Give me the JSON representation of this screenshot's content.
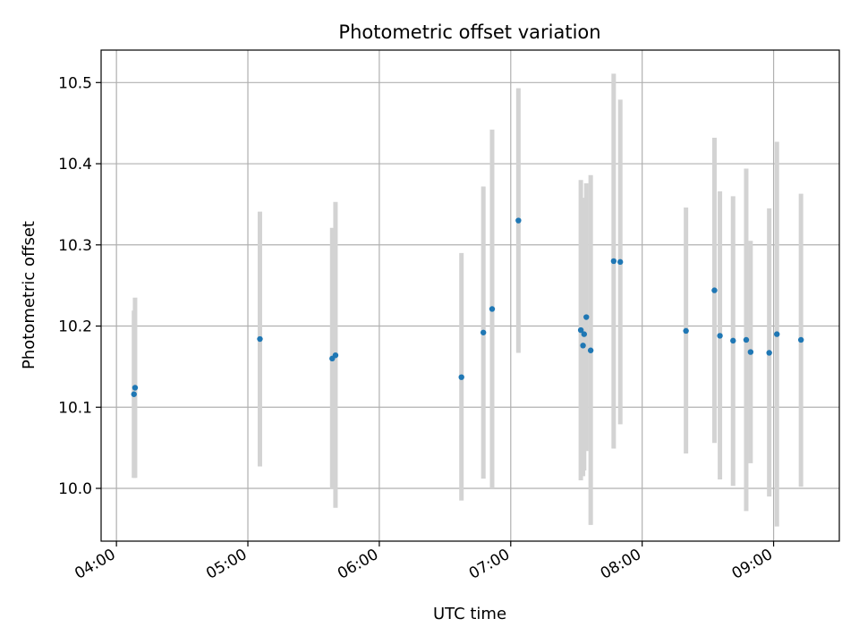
{
  "chart_data": {
    "type": "scatter",
    "title": "Photometric offset variation",
    "xlabel": "UTC time",
    "ylabel": "Photometric offset",
    "xlim": [
      "03:53",
      "09:30"
    ],
    "ylim": [
      9.935,
      10.54
    ],
    "grid": true,
    "legend": "none",
    "x_ticks": [
      "04:00",
      "05:00",
      "06:00",
      "07:00",
      "08:00",
      "09:00"
    ],
    "y_ticks": [
      10.0,
      10.1,
      10.2,
      10.3,
      10.4,
      10.5
    ],
    "colors": {
      "points": "#1f77b4",
      "errorbars": "#d3d3d3",
      "grid": "#b0b0b0"
    },
    "points": [
      {
        "x": "04:08:00",
        "y": 10.116,
        "ylo": 10.013,
        "yhi": 10.219
      },
      {
        "x": "04:08:30",
        "y": 10.124,
        "ylo": 10.013,
        "yhi": 10.235
      },
      {
        "x": "05:05:30",
        "y": 10.184,
        "ylo": 10.027,
        "yhi": 10.341
      },
      {
        "x": "05:38:30",
        "y": 10.16,
        "ylo": 9.999,
        "yhi": 10.321
      },
      {
        "x": "05:40:00",
        "y": 10.164,
        "ylo": 9.976,
        "yhi": 10.353
      },
      {
        "x": "06:37:30",
        "y": 10.137,
        "ylo": 9.985,
        "yhi": 10.29
      },
      {
        "x": "06:47:30",
        "y": 10.192,
        "ylo": 10.012,
        "yhi": 10.372
      },
      {
        "x": "06:51:30",
        "y": 10.221,
        "ylo": 10.0,
        "yhi": 10.442
      },
      {
        "x": "07:03:30",
        "y": 10.33,
        "ylo": 10.167,
        "yhi": 10.493
      },
      {
        "x": "07:32:00",
        "y": 10.195,
        "ylo": 10.01,
        "yhi": 10.38
      },
      {
        "x": "07:33:00",
        "y": 10.176,
        "ylo": 10.015,
        "yhi": 10.337
      },
      {
        "x": "07:33:30",
        "y": 10.19,
        "ylo": 10.022,
        "yhi": 10.358
      },
      {
        "x": "07:34:30",
        "y": 10.211,
        "ylo": 10.046,
        "yhi": 10.376
      },
      {
        "x": "07:36:30",
        "y": 10.17,
        "ylo": 9.955,
        "yhi": 10.386
      },
      {
        "x": "07:47:00",
        "y": 10.28,
        "ylo": 10.049,
        "yhi": 10.511
      },
      {
        "x": "07:50:00",
        "y": 10.279,
        "ylo": 10.079,
        "yhi": 10.479
      },
      {
        "x": "08:20:00",
        "y": 10.194,
        "ylo": 10.043,
        "yhi": 10.346
      },
      {
        "x": "08:33:00",
        "y": 10.244,
        "ylo": 10.056,
        "yhi": 10.432
      },
      {
        "x": "08:35:30",
        "y": 10.188,
        "ylo": 10.011,
        "yhi": 10.366
      },
      {
        "x": "08:41:30",
        "y": 10.182,
        "ylo": 10.003,
        "yhi": 10.36
      },
      {
        "x": "08:47:30",
        "y": 10.183,
        "ylo": 9.972,
        "yhi": 10.394
      },
      {
        "x": "08:49:30",
        "y": 10.168,
        "ylo": 10.031,
        "yhi": 10.305
      },
      {
        "x": "08:58:00",
        "y": 10.167,
        "ylo": 9.99,
        "yhi": 10.345
      },
      {
        "x": "09:01:30",
        "y": 10.19,
        "ylo": 9.953,
        "yhi": 10.427
      },
      {
        "x": "09:12:30",
        "y": 10.183,
        "ylo": 10.002,
        "yhi": 10.363
      }
    ]
  }
}
